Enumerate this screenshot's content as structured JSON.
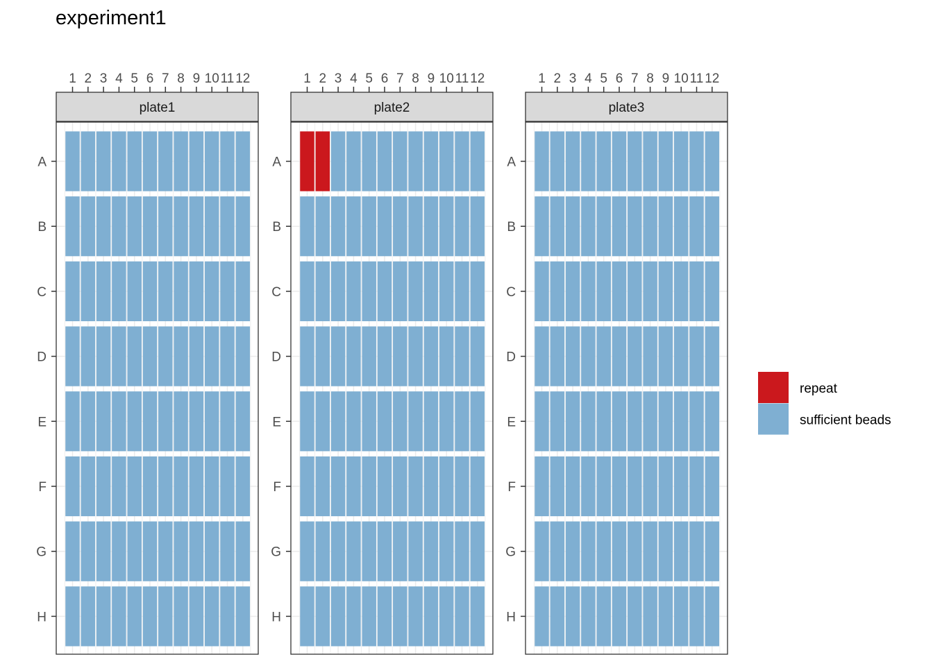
{
  "chart_data": {
    "type": "heatmap",
    "title": "experiment1",
    "xlabel": "",
    "ylabel": "",
    "x_ticks": [
      "1",
      "2",
      "3",
      "4",
      "5",
      "6",
      "7",
      "8",
      "9",
      "10",
      "11",
      "12"
    ],
    "y_ticks": [
      "A",
      "B",
      "C",
      "D",
      "E",
      "F",
      "G",
      "H"
    ],
    "grid": true,
    "legend_position": "right",
    "legend": [
      {
        "label": "repeat",
        "color": "#CB181D"
      },
      {
        "label": "sufficient beads",
        "color": "#7FAFD2"
      }
    ],
    "default_status": "sufficient beads",
    "facets": [
      {
        "name": "plate1",
        "repeat_wells": []
      },
      {
        "name": "plate2",
        "repeat_wells": [
          "A1",
          "A2"
        ]
      },
      {
        "name": "plate3",
        "repeat_wells": []
      }
    ]
  }
}
